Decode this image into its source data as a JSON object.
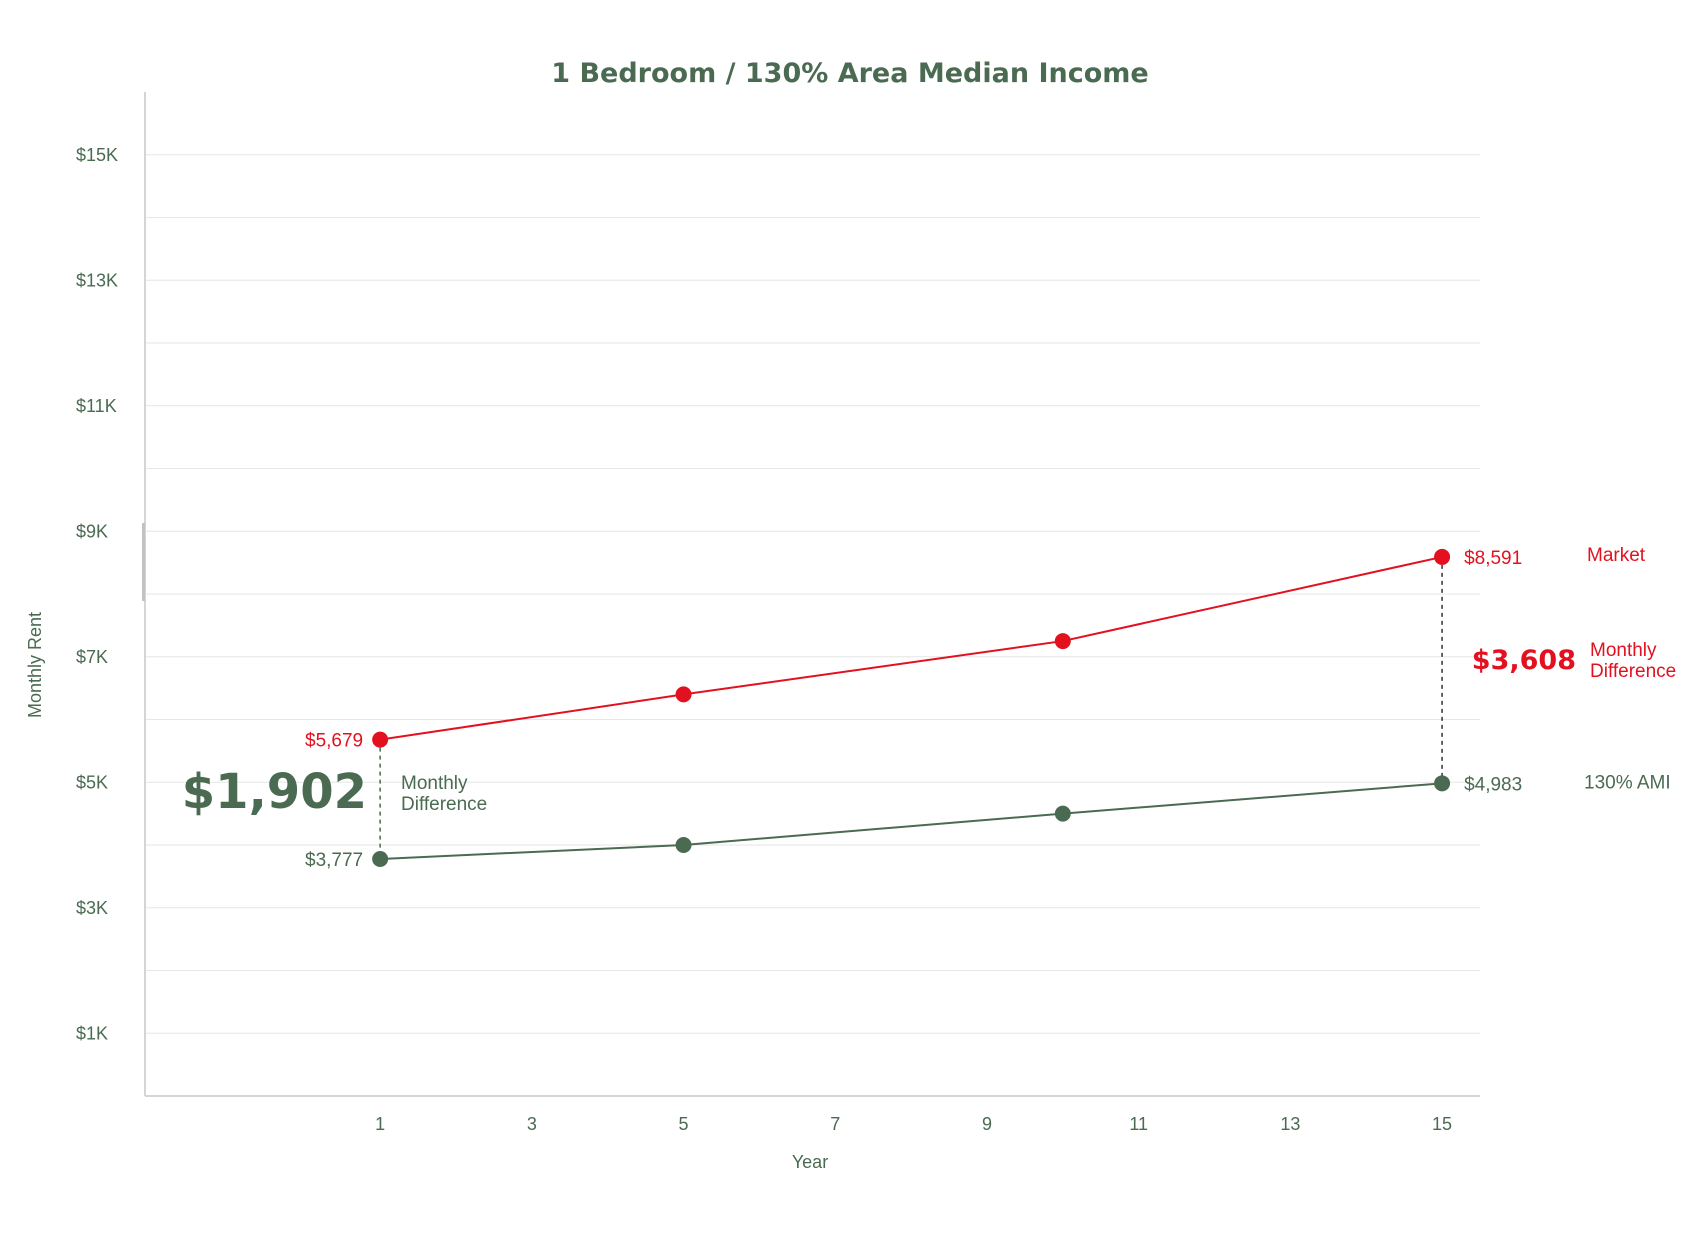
{
  "chart_data": {
    "type": "line",
    "title": "1 Bedroom / 130% Area Median Income",
    "xlabel": "Year",
    "ylabel": "Monthly Rent",
    "x_ticks": [
      1,
      3,
      5,
      7,
      9,
      11,
      13,
      15
    ],
    "y_ticks": [
      {
        "value": 1000,
        "label": "$1K"
      },
      {
        "value": 3000,
        "label": "$3K"
      },
      {
        "value": 5000,
        "label": "$5K"
      },
      {
        "value": 7000,
        "label": "$7K"
      },
      {
        "value": 9000,
        "label": "$9K"
      },
      {
        "value": 11000,
        "label": "$11K"
      },
      {
        "value": 13000,
        "label": "$13K"
      },
      {
        "value": 15000,
        "label": "$15K"
      }
    ],
    "xlim": [
      -2.1,
      15.5
    ],
    "ylim": [
      0,
      16000
    ],
    "grid": true,
    "series": [
      {
        "name": "Market",
        "color": "#e3111f",
        "x": [
          1,
          5,
          10,
          15
        ],
        "values": [
          5679,
          6400,
          7250,
          8591
        ],
        "point_labels": [
          {
            "index": 0,
            "text": "$5,679"
          },
          {
            "index": 3,
            "text": "$8,591"
          }
        ]
      },
      {
        "name": "130% AMI",
        "color": "#4a6b51",
        "x": [
          1,
          5,
          10,
          15
        ],
        "values": [
          3777,
          4000,
          4500,
          4983
        ],
        "point_labels": [
          {
            "index": 0,
            "text": "$3,777"
          },
          {
            "index": 3,
            "text": "$4,983"
          }
        ]
      }
    ],
    "annotations": [
      {
        "x": 1,
        "value": "$1,902",
        "label_line1": "Monthly",
        "label_line2": "Difference",
        "color": "#4a6b51"
      },
      {
        "x": 15,
        "value": "$3,608",
        "label_line1": "Monthly",
        "label_line2": "Difference",
        "color": "#e3111f"
      }
    ]
  },
  "colors": {
    "text_green": "#4a6b51",
    "market_red": "#e3111f",
    "grid": "#e6e6e6",
    "axis": "#d3d6d4"
  }
}
